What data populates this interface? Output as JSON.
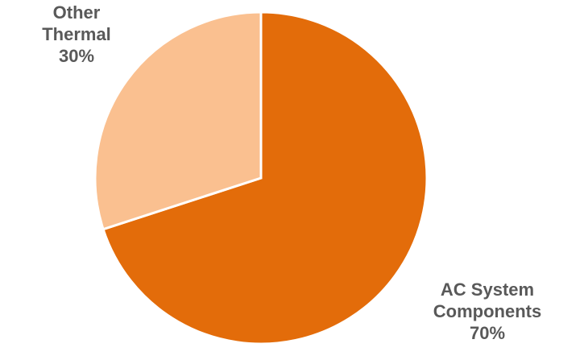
{
  "chart_data": {
    "type": "pie",
    "slices": [
      {
        "name": "AC System Components",
        "label_lines": [
          "AC System",
          "Components"
        ],
        "value": 70,
        "percent_label": "70%",
        "color": "#e36c0a"
      },
      {
        "name": "Other Thermal",
        "label_lines": [
          "Other",
          "Thermal"
        ],
        "value": 30,
        "percent_label": "30%",
        "color": "#fac090"
      }
    ],
    "start_angle": "12 o'clock",
    "direction": "clockwise",
    "slice_border_color": "#ffffff",
    "label_color": "#595959"
  }
}
